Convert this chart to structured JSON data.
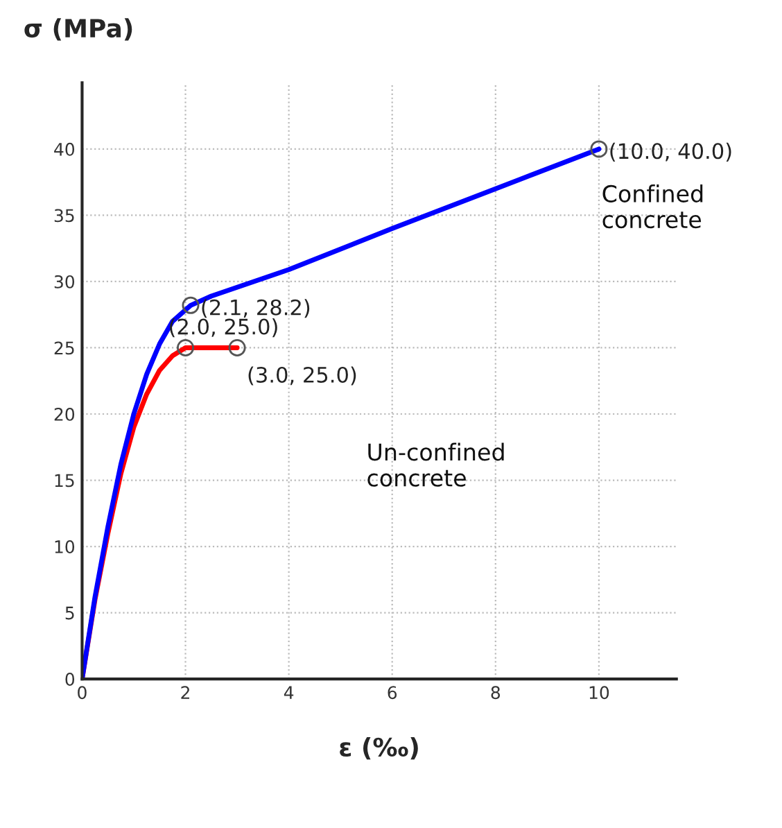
{
  "chart_data": {
    "type": "line",
    "xlabel": "ε (‰)",
    "ylabel": "σ (MPa)",
    "xlim": [
      0,
      11.5
    ],
    "ylim": [
      0,
      45
    ],
    "xticks": [
      0,
      2,
      4,
      6,
      8,
      10
    ],
    "yticks": [
      0,
      5,
      10,
      15,
      20,
      25,
      30,
      35,
      40
    ],
    "grid": true,
    "series": [
      {
        "color": "#ff0000",
        "x": [
          0,
          0.25,
          0.5,
          0.75,
          1,
          1.25,
          1.5,
          1.75,
          2,
          3
        ],
        "values": [
          0,
          6,
          11,
          15.5,
          19,
          21.5,
          23.3,
          24.4,
          25,
          25
        ]
      },
      {
        "color": "#0000ff",
        "x": [
          0,
          0.25,
          0.5,
          0.75,
          1,
          1.25,
          1.5,
          1.75,
          2.1,
          2.5,
          4,
          6,
          8,
          10
        ],
        "values": [
          0,
          6.2,
          11.5,
          16.2,
          20,
          23,
          25.3,
          27,
          28.2,
          28.9,
          30.9,
          34,
          37,
          40
        ]
      }
    ],
    "annotations": [
      {
        "text": "(2.1, 28.2)",
        "x": 2.1,
        "y": 28.2
      },
      {
        "text": "(2.0, 25.0)",
        "x": 2.0,
        "y": 25.0
      },
      {
        "text": "(3.0, 25.0)",
        "x": 3.0,
        "y": 25.0
      },
      {
        "text": "(10.0, 40.0)",
        "x": 10.0,
        "y": 40.0
      },
      "Confined concrete",
      "Un-confined concrete"
    ]
  }
}
